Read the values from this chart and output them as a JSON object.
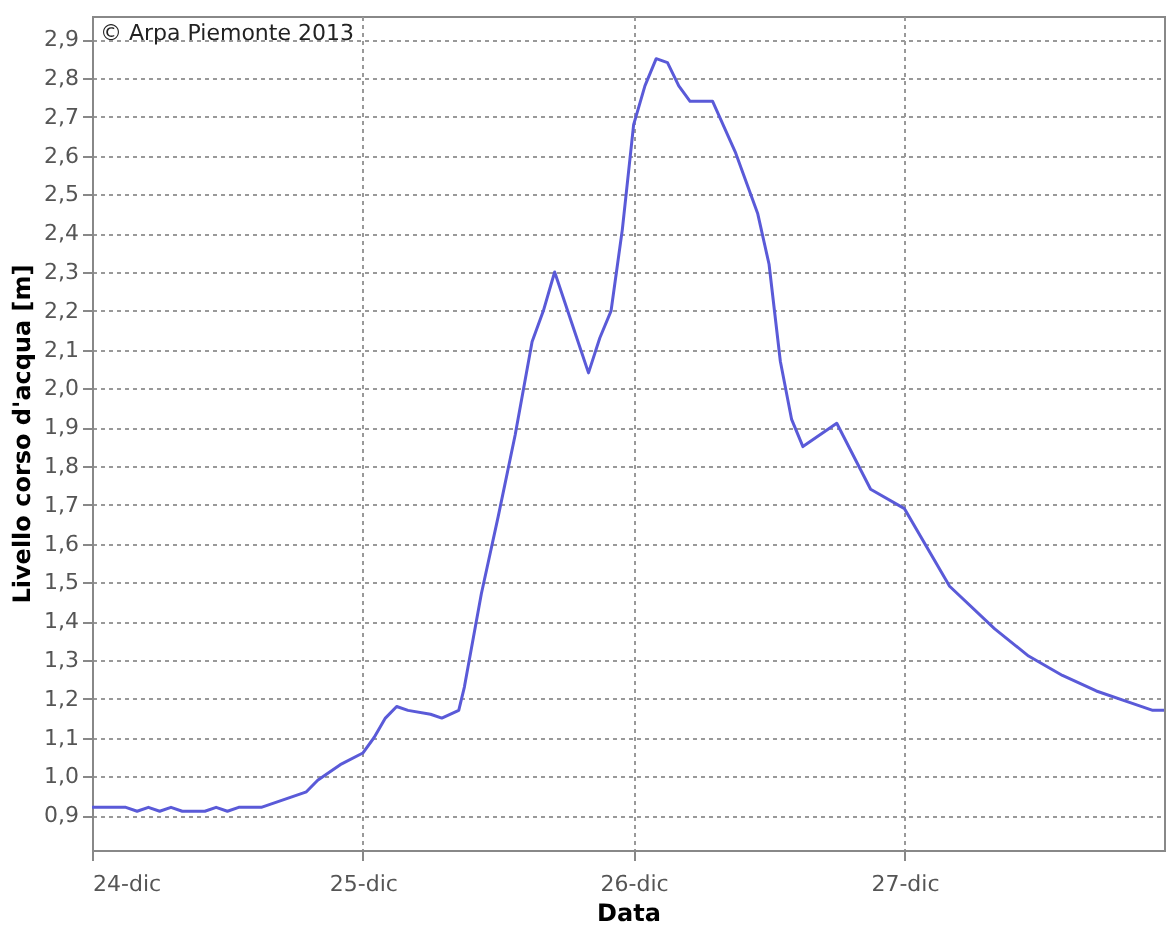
{
  "chart_data": {
    "type": "line",
    "xlabel": "Data",
    "ylabel": "Livello corso d'acqua [m]",
    "annotations": [
      "© Arpa Piemonte 2013"
    ],
    "x": [
      "2013-12-24T00:00",
      "2013-12-24T03:00",
      "2013-12-24T04:00",
      "2013-12-24T05:00",
      "2013-12-24T06:00",
      "2013-12-24T07:00",
      "2013-12-24T08:00",
      "2013-12-24T10:00",
      "2013-12-24T11:00",
      "2013-12-24T12:00",
      "2013-12-24T13:00",
      "2013-12-24T15:00",
      "2013-12-24T17:00",
      "2013-12-24T19:00",
      "2013-12-24T20:00",
      "2013-12-24T22:00",
      "2013-12-25T00:00",
      "2013-12-25T01:00",
      "2013-12-25T02:00",
      "2013-12-25T03:00",
      "2013-12-25T04:00",
      "2013-12-25T06:00",
      "2013-12-25T07:00",
      "2013-12-25T08:30",
      "2013-12-25T09:00",
      "2013-12-25T10:30",
      "2013-12-25T12:00",
      "2013-12-25T13:30",
      "2013-12-25T15:00",
      "2013-12-25T16:00",
      "2013-12-25T17:00",
      "2013-12-25T18:30",
      "2013-12-25T20:00",
      "2013-12-25T21:00",
      "2013-12-25T22:00",
      "2013-12-25T23:00",
      "2013-12-26T00:00",
      "2013-12-26T01:00",
      "2013-12-26T02:00",
      "2013-12-26T03:00",
      "2013-12-26T04:00",
      "2013-12-26T05:00",
      "2013-12-26T07:00",
      "2013-12-26T09:00",
      "2013-12-26T11:00",
      "2013-12-26T12:00",
      "2013-12-26T13:00",
      "2013-12-26T14:00",
      "2013-12-26T15:00",
      "2013-12-26T18:00",
      "2013-12-26T21:00",
      "2013-12-27T00:00",
      "2013-12-27T04:00",
      "2013-12-27T08:00",
      "2013-12-27T11:00",
      "2013-12-27T14:00",
      "2013-12-27T17:00",
      "2013-12-27T20:00",
      "2013-12-27T22:00",
      "2013-12-27T23:00"
    ],
    "series": [
      {
        "color": "#5a5ad8",
        "values": [
          0.92,
          0.92,
          0.91,
          0.92,
          0.91,
          0.92,
          0.91,
          0.91,
          0.92,
          0.91,
          0.92,
          0.92,
          0.94,
          0.96,
          0.99,
          1.03,
          1.06,
          1.1,
          1.15,
          1.18,
          1.17,
          1.16,
          1.15,
          1.17,
          1.23,
          1.47,
          1.67,
          1.88,
          2.12,
          2.2,
          2.3,
          2.17,
          2.04,
          2.13,
          2.2,
          2.41,
          2.68,
          2.78,
          2.85,
          2.84,
          2.78,
          2.74,
          2.74,
          2.61,
          2.45,
          2.32,
          2.07,
          1.92,
          1.85,
          1.91,
          1.74,
          1.69,
          1.49,
          1.38,
          1.31,
          1.26,
          1.22,
          1.19,
          1.17,
          1.17
        ]
      }
    ],
    "xlim": [
      "2013-12-24T00:00",
      "2013-12-27T23:00"
    ],
    "xticks": [
      {
        "value": "2013-12-24",
        "label": "24-dic"
      },
      {
        "value": "2013-12-25",
        "label": "25-dic"
      },
      {
        "value": "2013-12-26",
        "label": "26-dic"
      },
      {
        "value": "2013-12-27",
        "label": "27-dic"
      }
    ],
    "ylim": [
      0.81,
      2.96
    ],
    "yticks": [
      {
        "value": 0.9,
        "label": "0,9"
      },
      {
        "value": 1.0,
        "label": "1,0"
      },
      {
        "value": 1.1,
        "label": "1,1"
      },
      {
        "value": 1.2,
        "label": "1,2"
      },
      {
        "value": 1.3,
        "label": "1,3"
      },
      {
        "value": 1.4,
        "label": "1,4"
      },
      {
        "value": 1.5,
        "label": "1,5"
      },
      {
        "value": 1.6,
        "label": "1,6"
      },
      {
        "value": 1.7,
        "label": "1,7"
      },
      {
        "value": 1.8,
        "label": "1,8"
      },
      {
        "value": 1.9,
        "label": "1,9"
      },
      {
        "value": 2.0,
        "label": "2,0"
      },
      {
        "value": 2.1,
        "label": "2,1"
      },
      {
        "value": 2.2,
        "label": "2,2"
      },
      {
        "value": 2.3,
        "label": "2,3"
      },
      {
        "value": 2.4,
        "label": "2,4"
      },
      {
        "value": 2.5,
        "label": "2,5"
      },
      {
        "value": 2.6,
        "label": "2,6"
      },
      {
        "value": 2.7,
        "label": "2,7"
      },
      {
        "value": 2.8,
        "label": "2,8"
      },
      {
        "value": 2.9,
        "label": "2,9"
      }
    ],
    "grid": true,
    "line_style": "solid"
  }
}
